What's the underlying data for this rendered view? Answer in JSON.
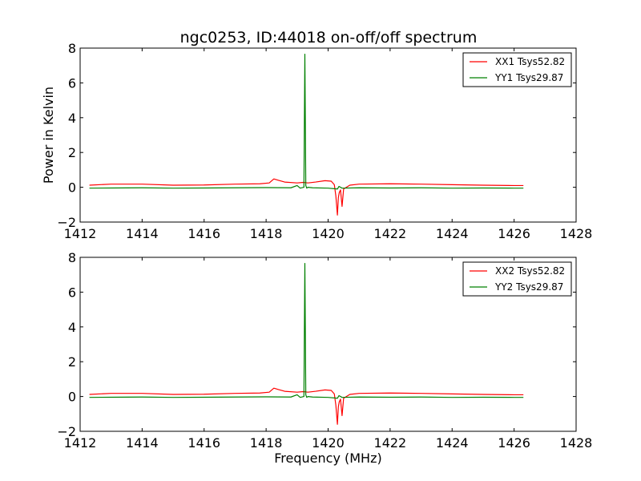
{
  "title": "ngc0253, ID:44018 on-off/off spectrum",
  "colors": {
    "xx": "#ff0000",
    "yy": "#008000",
    "axes": "#000000",
    "background": "#ffffff"
  },
  "chart_data": [
    {
      "type": "line",
      "xlabel": "",
      "ylabel": "Power in Kelvin",
      "xlim": [
        1412,
        1428
      ],
      "ylim": [
        -2,
        8
      ],
      "xticks": [
        1412,
        1414,
        1416,
        1418,
        1420,
        1422,
        1424,
        1426,
        1428
      ],
      "yticks": [
        -2,
        0,
        2,
        4,
        6,
        8
      ],
      "ytick_labels": [
        "−2",
        "0",
        "2",
        "4",
        "6",
        "8"
      ],
      "grid": false,
      "legend_position": "top-right",
      "series": [
        {
          "name": "XX1 Tsys52.82",
          "color": "#ff0000",
          "x": [
            1412.3,
            1413.0,
            1414.0,
            1415.0,
            1416.0,
            1417.0,
            1417.8,
            1418.1,
            1418.25,
            1418.4,
            1418.6,
            1419.0,
            1419.2,
            1419.35,
            1419.6,
            1419.9,
            1420.1,
            1420.2,
            1420.25,
            1420.3,
            1420.33,
            1420.36,
            1420.4,
            1420.45,
            1420.5,
            1420.7,
            1421.0,
            1422.0,
            1423.0,
            1424.0,
            1425.0,
            1426.0,
            1426.3
          ],
          "y": [
            0.12,
            0.18,
            0.18,
            0.12,
            0.13,
            0.18,
            0.2,
            0.25,
            0.48,
            0.4,
            0.3,
            0.25,
            0.28,
            0.25,
            0.3,
            0.38,
            0.35,
            0.15,
            -0.5,
            -1.6,
            -0.6,
            -0.3,
            -0.15,
            -1.1,
            -0.1,
            0.12,
            0.18,
            0.2,
            0.18,
            0.15,
            0.12,
            0.1,
            0.1
          ]
        },
        {
          "name": "YY1 Tsys29.87",
          "color": "#008000",
          "x": [
            1412.3,
            1413.0,
            1414.0,
            1415.0,
            1416.0,
            1417.0,
            1418.0,
            1418.8,
            1419.0,
            1419.1,
            1419.22,
            1419.25,
            1419.28,
            1419.31,
            1419.35,
            1419.5,
            1420.0,
            1420.3,
            1420.35,
            1420.45,
            1421.0,
            1422.0,
            1423.0,
            1424.0,
            1425.0,
            1426.0,
            1426.3
          ],
          "y": [
            -0.05,
            -0.04,
            -0.03,
            -0.05,
            -0.04,
            -0.03,
            -0.02,
            -0.03,
            0.1,
            -0.05,
            0.0,
            7.65,
            0.1,
            -0.05,
            0.0,
            -0.03,
            -0.05,
            -0.1,
            0.05,
            -0.05,
            -0.03,
            -0.04,
            -0.03,
            -0.05,
            -0.04,
            -0.05,
            -0.05
          ]
        }
      ]
    },
    {
      "type": "line",
      "xlabel": "Frequency (MHz)",
      "ylabel": "",
      "xlim": [
        1412,
        1428
      ],
      "ylim": [
        -2,
        8
      ],
      "xticks": [
        1412,
        1414,
        1416,
        1418,
        1420,
        1422,
        1424,
        1426,
        1428
      ],
      "yticks": [
        -2,
        0,
        2,
        4,
        6,
        8
      ],
      "ytick_labels": [
        "−2",
        "0",
        "2",
        "4",
        "6",
        "8"
      ],
      "grid": false,
      "legend_position": "top-right",
      "series": [
        {
          "name": "XX2 Tsys52.82",
          "color": "#ff0000",
          "x": [
            1412.3,
            1413.0,
            1414.0,
            1415.0,
            1416.0,
            1417.0,
            1417.8,
            1418.1,
            1418.25,
            1418.4,
            1418.6,
            1419.0,
            1419.2,
            1419.35,
            1419.6,
            1419.9,
            1420.1,
            1420.2,
            1420.25,
            1420.3,
            1420.33,
            1420.36,
            1420.4,
            1420.45,
            1420.5,
            1420.7,
            1421.0,
            1422.0,
            1423.0,
            1424.0,
            1425.0,
            1426.0,
            1426.3
          ],
          "y": [
            0.12,
            0.18,
            0.18,
            0.12,
            0.13,
            0.18,
            0.2,
            0.25,
            0.48,
            0.4,
            0.3,
            0.25,
            0.28,
            0.25,
            0.3,
            0.38,
            0.35,
            0.15,
            -0.5,
            -1.6,
            -0.6,
            -0.3,
            -0.15,
            -1.1,
            -0.1,
            0.12,
            0.18,
            0.2,
            0.18,
            0.15,
            0.12,
            0.1,
            0.1
          ]
        },
        {
          "name": "YY2 Tsys29.87",
          "color": "#008000",
          "x": [
            1412.3,
            1413.0,
            1414.0,
            1415.0,
            1416.0,
            1417.0,
            1418.0,
            1418.8,
            1419.0,
            1419.1,
            1419.22,
            1419.25,
            1419.28,
            1419.31,
            1419.35,
            1419.5,
            1420.0,
            1420.3,
            1420.35,
            1420.45,
            1421.0,
            1422.0,
            1423.0,
            1424.0,
            1425.0,
            1426.0,
            1426.3
          ],
          "y": [
            -0.05,
            -0.04,
            -0.03,
            -0.05,
            -0.04,
            -0.03,
            -0.02,
            -0.03,
            0.1,
            -0.05,
            0.0,
            7.65,
            0.1,
            -0.05,
            0.0,
            -0.03,
            -0.05,
            -0.1,
            0.05,
            -0.05,
            -0.03,
            -0.04,
            -0.03,
            -0.05,
            -0.04,
            -0.05,
            -0.05
          ]
        }
      ]
    }
  ]
}
